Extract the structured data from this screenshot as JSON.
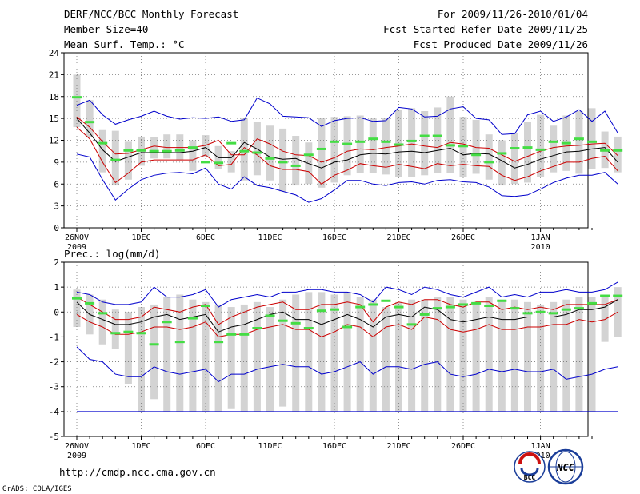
{
  "header": {
    "title": "DERF/NCC/BCC Monthly Forecast",
    "member_size": "Member Size=40",
    "variable_top": "Mean Surf. Temp.: °C",
    "period": "For 2009/11/26-2010/01/04",
    "started": "Fcst Started Refer Date 2009/11/25",
    "produced": "Fcst Produced Date 2009/11/26"
  },
  "footer": {
    "url": "http://cmdp.ncc.cma.gov.cn",
    "credit": "GrADS: COLA/IGES",
    "logo_bcc": "BCC",
    "logo_ncc": "NCC"
  },
  "colors": {
    "max_min": "#0000cc",
    "percentile": "#cc0000",
    "mean": "#000000",
    "box": "#d3d3d3",
    "median": "#44dd44"
  },
  "chart_data": [
    {
      "id": "temperature",
      "type": "box-line",
      "title": "Mean Surf. Temp.: °C",
      "ylim": [
        0,
        24
      ],
      "yticks": [
        0,
        3,
        6,
        9,
        12,
        15,
        18,
        21,
        24
      ],
      "x_days": 40,
      "xtick_days": [
        0,
        5,
        10,
        15,
        20,
        25,
        30,
        36
      ],
      "xtick_labels": [
        "26NOV",
        "1DEC",
        "6DEC",
        "11DEC",
        "16DEC",
        "21DEC",
        "26DEC",
        "1JAN"
      ],
      "xtick_sublabels": {
        "0": "2009",
        "36": "2010"
      },
      "series": [
        {
          "name": "max",
          "values": [
            16.8,
            17.5,
            15.5,
            14.2,
            14.8,
            15.3,
            16.0,
            15.3,
            14.9,
            15.1,
            15.0,
            15.2,
            14.6,
            14.8,
            17.8,
            17.0,
            15.3,
            15.2,
            15.1,
            13.9,
            14.7,
            15.0,
            15.1,
            14.6,
            14.7,
            16.5,
            16.3,
            15.2,
            15.3,
            16.3,
            16.6,
            15.0,
            14.8,
            12.8,
            12.9,
            15.5,
            16.0,
            14.6,
            15.2,
            16.2,
            14.6,
            16.0,
            13.0
          ]
        },
        {
          "name": "p90",
          "values": [
            15.2,
            13.8,
            11.8,
            10.1,
            10.2,
            10.7,
            11.2,
            11.0,
            11.0,
            11.0,
            11.3,
            12.0,
            10.0,
            10.0,
            12.2,
            11.5,
            10.5,
            10.0,
            9.9,
            9.0,
            9.6,
            10.5,
            10.8,
            10.7,
            11.0,
            11.2,
            11.5,
            11.2,
            11.0,
            11.7,
            11.5,
            11.0,
            10.9,
            10.0,
            9.1,
            9.8,
            10.5,
            11.0,
            11.2,
            11.3,
            11.5,
            11.6,
            9.9
          ]
        },
        {
          "name": "mean",
          "values": [
            15.0,
            13.0,
            10.7,
            9.1,
            9.7,
            10.3,
            10.3,
            10.3,
            10.3,
            10.5,
            11.0,
            9.6,
            9.6,
            11.7,
            10.8,
            9.7,
            9.4,
            9.5,
            8.8,
            8.2,
            9.0,
            9.3,
            10.0,
            10.2,
            10.1,
            10.4,
            10.5,
            10.3,
            10.6,
            10.9,
            10.0,
            10.2,
            10.1,
            9.2,
            8.2,
            8.7,
            9.4,
            9.9,
            10.4,
            10.5,
            10.8,
            11.0,
            9.0
          ]
        },
        {
          "name": "p10",
          "values": [
            13.8,
            12.2,
            9.0,
            6.2,
            7.5,
            9.0,
            9.3,
            9.3,
            9.3,
            9.3,
            10.0,
            8.5,
            8.7,
            11.0,
            10.0,
            8.5,
            8.0,
            8.0,
            7.7,
            6.0,
            7.2,
            7.9,
            8.8,
            8.5,
            8.3,
            8.7,
            8.4,
            8.1,
            8.8,
            8.5,
            8.7,
            8.5,
            8.4,
            7.2,
            6.5,
            7.0,
            7.8,
            8.4,
            9.0,
            9.0,
            9.5,
            9.8,
            7.8
          ]
        },
        {
          "name": "min",
          "values": [
            10.1,
            9.7,
            6.6,
            3.8,
            5.3,
            6.6,
            7.2,
            7.5,
            7.6,
            7.4,
            8.2,
            6.0,
            5.3,
            7.0,
            5.8,
            5.5,
            5.0,
            4.5,
            3.5,
            4.0,
            5.2,
            6.5,
            6.5,
            6.0,
            5.8,
            6.2,
            6.3,
            6.0,
            6.5,
            6.6,
            6.3,
            6.2,
            5.6,
            4.4,
            4.3,
            4.5,
            5.3,
            6.2,
            6.8,
            7.2,
            7.2,
            7.6,
            6.0
          ]
        }
      ],
      "boxes": {
        "top": [
          21.0,
          17.5,
          13.4,
          13.3,
          11.8,
          12.5,
          12.4,
          12.8,
          12.8,
          12.0,
          12.7,
          11.2,
          10.5,
          15.0,
          14.5,
          14.0,
          13.6,
          12.6,
          11.7,
          15.1,
          15.2,
          15.3,
          15.4,
          15.0,
          15.1,
          16.2,
          16.4,
          16.0,
          16.5,
          18.0,
          15.2,
          14.8,
          12.8,
          12.0,
          13.0,
          14.5,
          15.5,
          14.0,
          15.4,
          16.0,
          16.4,
          13.2,
          12.5
        ],
        "bottom": [
          13.8,
          12.4,
          7.6,
          5.8,
          6.6,
          8.5,
          9.5,
          9.5,
          9.3,
          7.8,
          9.7,
          8.1,
          7.6,
          6.5,
          7.2,
          6.5,
          5.0,
          5.8,
          6.0,
          5.5,
          6.2,
          7.2,
          7.5,
          7.5,
          7.3,
          7.0,
          7.0,
          7.2,
          7.5,
          7.5,
          7.0,
          7.4,
          6.6,
          5.8,
          6.0,
          6.2,
          7.0,
          7.6,
          7.8,
          7.4,
          8.0,
          8.2,
          7.6
        ]
      },
      "median": [
        17.9,
        14.5,
        11.6,
        9.3,
        10.6,
        10.6,
        10.5,
        10.5,
        10.6,
        11.0,
        9.0,
        8.9,
        11.6,
        10.5,
        10.3,
        9.5,
        9.0,
        8.5,
        10.0,
        10.8,
        11.8,
        11.5,
        11.8,
        12.2,
        11.8,
        11.4,
        11.9,
        12.6,
        12.6,
        11.3,
        11.2,
        10.0,
        9.0,
        10.2,
        10.9,
        11.0,
        10.7,
        11.8,
        11.6,
        12.2,
        11.8,
        10.6,
        10.6
      ]
    },
    {
      "id": "precipitation",
      "type": "box-line",
      "title": "Prec.: log(mm/d)",
      "ylim": [
        -5,
        2
      ],
      "yticks": [
        -5,
        -4,
        -3,
        -2,
        -1,
        0,
        1,
        2
      ],
      "x_days": 40,
      "xtick_days": [
        0,
        5,
        10,
        15,
        20,
        25,
        30,
        36
      ],
      "xtick_labels": [
        "26NOV",
        "1DEC",
        "6DEC",
        "11DEC",
        "16DEC",
        "21DEC",
        "26DEC",
        "1JAN"
      ],
      "xtick_sublabels": {
        "0": "2009",
        "36": "2010"
      },
      "series": [
        {
          "name": "max",
          "values": [
            0.8,
            0.7,
            0.4,
            0.3,
            0.3,
            0.4,
            1.0,
            0.6,
            0.6,
            0.7,
            0.9,
            0.2,
            0.5,
            0.6,
            0.7,
            0.6,
            0.8,
            0.8,
            0.9,
            0.9,
            0.8,
            0.8,
            0.7,
            0.4,
            1.0,
            0.9,
            0.7,
            1.0,
            0.9,
            0.7,
            0.6,
            0.8,
            1.0,
            0.6,
            0.7,
            0.6,
            0.8,
            0.8,
            0.9,
            0.8,
            0.8,
            0.9,
            1.2
          ]
        },
        {
          "name": "p90",
          "values": [
            0.6,
            0.3,
            0.0,
            -0.3,
            -0.3,
            -0.2,
            0.2,
            0.1,
            0.0,
            0.2,
            0.3,
            -0.5,
            -0.2,
            0.0,
            0.2,
            0.3,
            0.4,
            0.1,
            0.1,
            0.3,
            0.3,
            0.4,
            0.3,
            -0.4,
            0.2,
            0.4,
            0.3,
            0.5,
            0.5,
            0.3,
            0.2,
            0.4,
            0.4,
            0.1,
            0.2,
            0.1,
            0.2,
            0.1,
            0.3,
            0.3,
            0.3,
            0.3,
            0.5
          ]
        },
        {
          "name": "mean",
          "values": [
            0.4,
            -0.1,
            -0.3,
            -0.5,
            -0.5,
            -0.4,
            -0.2,
            -0.1,
            -0.3,
            -0.2,
            -0.1,
            -0.8,
            -0.6,
            -0.5,
            -0.3,
            -0.1,
            -0.0,
            -0.3,
            -0.3,
            -0.5,
            -0.3,
            -0.1,
            -0.3,
            -0.6,
            -0.2,
            -0.1,
            -0.2,
            0.2,
            0.1,
            -0.3,
            -0.4,
            -0.3,
            -0.2,
            -0.3,
            -0.3,
            -0.2,
            -0.2,
            -0.2,
            -0.1,
            0.1,
            0.1,
            0.2,
            0.5
          ]
        },
        {
          "name": "p10",
          "values": [
            -0.1,
            -0.4,
            -0.6,
            -0.9,
            -0.9,
            -0.8,
            -0.6,
            -0.6,
            -0.7,
            -0.6,
            -0.4,
            -1.0,
            -0.9,
            -0.9,
            -0.7,
            -0.6,
            -0.5,
            -0.7,
            -0.7,
            -1.0,
            -0.8,
            -0.5,
            -0.6,
            -1.0,
            -0.6,
            -0.5,
            -0.7,
            -0.2,
            -0.3,
            -0.7,
            -0.8,
            -0.7,
            -0.5,
            -0.7,
            -0.7,
            -0.6,
            -0.6,
            -0.5,
            -0.5,
            -0.3,
            -0.4,
            -0.3,
            0.0
          ]
        },
        {
          "name": "min",
          "values": [
            -1.4,
            -1.9,
            -2.0,
            -2.5,
            -2.6,
            -2.6,
            -2.2,
            -2.4,
            -2.5,
            -2.4,
            -2.3,
            -2.8,
            -2.5,
            -2.5,
            -2.3,
            -2.2,
            -2.1,
            -2.2,
            -2.2,
            -2.5,
            -2.4,
            -2.2,
            -2.0,
            -2.5,
            -2.2,
            -2.2,
            -2.3,
            -2.1,
            -2.0,
            -2.5,
            -2.6,
            -2.5,
            -2.3,
            -2.4,
            -2.3,
            -2.4,
            -2.4,
            -2.3,
            -2.7,
            -2.6,
            -2.5,
            -2.3,
            -2.2
          ]
        },
        {
          "name": "lower_bound",
          "values": [
            -4,
            -4,
            -4,
            -4,
            -4,
            -4,
            -4,
            -4,
            -4,
            -4,
            -4,
            -4,
            -4,
            -4,
            -4,
            -4,
            -4,
            -4,
            -4,
            -4,
            -4,
            -4,
            -4,
            -4,
            -4,
            -4,
            -4,
            -4,
            -4,
            -4,
            -4,
            -4,
            -4,
            -4,
            -4,
            -4,
            -4,
            -4,
            -4,
            -4,
            -4,
            -4,
            -4
          ]
        }
      ],
      "boxes": {
        "top": [
          0.9,
          0.7,
          0.5,
          0.1,
          0.0,
          0.2,
          0.3,
          0.6,
          0.7,
          0.5,
          0.4,
          0.3,
          0.2,
          0.3,
          0.4,
          0.2,
          0.5,
          0.7,
          0.8,
          0.8,
          0.7,
          0.8,
          0.6,
          0.5,
          0.2,
          0.4,
          0.5,
          0.5,
          0.6,
          0.6,
          0.5,
          0.4,
          0.6,
          0.5,
          0.5,
          0.4,
          0.3,
          0.4,
          0.5,
          0.6,
          0.6,
          0.7,
          1.0
        ],
        "bottom": [
          -0.6,
          -0.9,
          -1.3,
          -1.5,
          -2.9,
          -4.0,
          -3.5,
          -4.0,
          -4.0,
          -4.0,
          -4.0,
          -4.0,
          -3.9,
          -4.0,
          -4.0,
          -4.0,
          -3.8,
          -4.0,
          -4.0,
          -4.0,
          -4.0,
          -4.0,
          -4.0,
          -4.0,
          -4.0,
          -4.0,
          -4.0,
          -4.0,
          -4.0,
          -4.0,
          -4.0,
          -4.0,
          -4.0,
          -4.0,
          -4.0,
          -4.0,
          -4.0,
          -4.0,
          -4.0,
          -4.0,
          -4.0,
          -1.2,
          -1.0
        ]
      },
      "median": [
        0.55,
        0.35,
        -0.05,
        -0.85,
        -0.8,
        -0.85,
        -1.3,
        -0.4,
        -1.2,
        -0.25,
        0.25,
        -1.2,
        -0.9,
        -0.9,
        -0.65,
        -0.15,
        -0.35,
        -0.45,
        -0.65,
        0.05,
        0.1,
        -0.6,
        0.2,
        0.3,
        0.45,
        0.2,
        -0.5,
        -0.1,
        0.15,
        0.2,
        0.3,
        0.35,
        0.25,
        0.45,
        0.15,
        -0.05,
        0.0,
        -0.05,
        0.1,
        0.15,
        0.35,
        0.65,
        0.65
      ]
    }
  ]
}
